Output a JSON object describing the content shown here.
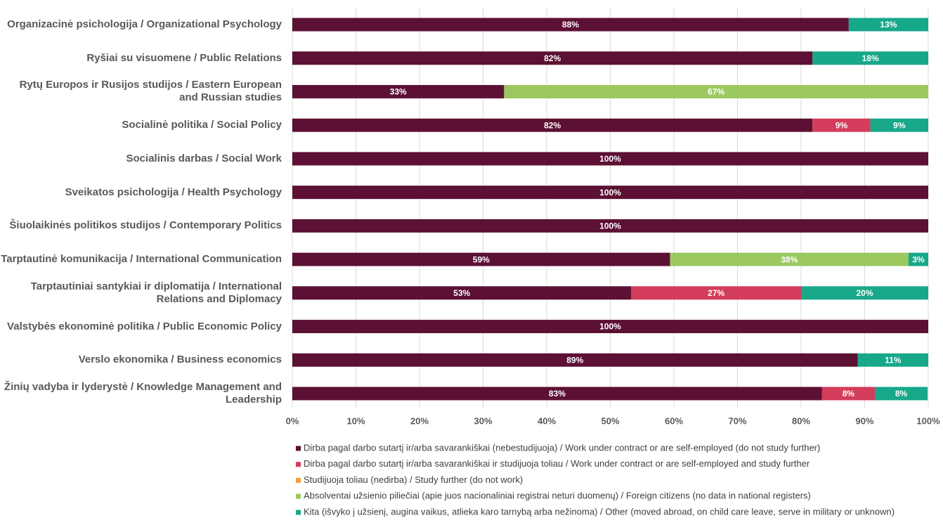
{
  "chart_data": {
    "type": "stacked-bar-horizontal",
    "categories": [
      "Organizacinė psichologija / Organizational Psychology",
      "Ryšiai su visuomene / Public Relations",
      "Rytų Europos ir Rusijos studijos / Eastern European and Russian studies",
      "Socialinė politika / Social Policy",
      "Socialinis darbas / Social Work",
      "Sveikatos psichologija / Health Psychology",
      "Šiuolaikinės politikos studijos / Contemporary Politics",
      "Tarptautinė komunikacija / International Communication",
      "Tarptautiniai santykiai ir diplomatija / International Relations and Diplomacy",
      "Valstybės ekonominė politika / Public Economic Policy",
      "Verslo ekonomika / Business economics",
      "Žinių vadyba ir lyderystė / Knowledge Management and Leadership"
    ],
    "series": [
      {
        "name": "Dirba pagal darbo sutartį ir/arba savarankiškai (nebestudijuoja) / Work under contract or are self-employed (do not study further)",
        "color": "#5c1033",
        "values": [
          87.5,
          81.8,
          33.3,
          81.8,
          100,
          100,
          100,
          59.4,
          53.3,
          100,
          88.9,
          83.3
        ],
        "value_labels": [
          "88%",
          "82%",
          "33%",
          "82%",
          "100%",
          "100%",
          "100%",
          "59%",
          "53%",
          "100%",
          "89%",
          "83%"
        ]
      },
      {
        "name": "Dirba pagal darbo sutartį ir/arba savarankiškai  ir studijuoja toliau / Work under contract or are self-employed and study further",
        "color": "#d33c5a",
        "values": [
          null,
          null,
          null,
          9.1,
          null,
          null,
          null,
          null,
          26.7,
          null,
          null,
          8.3
        ],
        "value_labels": [
          null,
          null,
          null,
          "9%",
          null,
          null,
          null,
          null,
          "27%",
          null,
          null,
          "8%"
        ]
      },
      {
        "name": "Studijuoja toliau (nedirba) / Study further (do not work)",
        "color": "#f0a03c",
        "values": [
          null,
          null,
          null,
          null,
          null,
          null,
          null,
          null,
          null,
          null,
          null,
          null
        ],
        "value_labels": [
          null,
          null,
          null,
          null,
          null,
          null,
          null,
          null,
          null,
          null,
          null,
          null
        ]
      },
      {
        "name": "Absolventai užsienio piliečiai (apie juos nacionaliniai registrai neturi duomenų) / Foreign citizens (no data in national registers)",
        "color": "#9bc95f",
        "values": [
          null,
          null,
          66.7,
          null,
          null,
          null,
          null,
          37.5,
          null,
          null,
          null,
          null
        ],
        "value_labels": [
          null,
          null,
          "67%",
          null,
          null,
          null,
          null,
          "38%",
          null,
          null,
          null,
          null
        ]
      },
      {
        "name": "Kita (išvyko į užsienį, augina vaikus, atlieka karo tarnybą arba nežinoma) / Other (moved abroad, on child care leave, serve in military or unknown)",
        "color": "#17a88a",
        "values": [
          12.5,
          18.2,
          null,
          9.1,
          null,
          null,
          null,
          3.1,
          20,
          null,
          11.1,
          8.3
        ],
        "value_labels": [
          "13%",
          "18%",
          null,
          "9%",
          null,
          null,
          null,
          "3%",
          "20%",
          null,
          "11%",
          "8%"
        ]
      }
    ],
    "xlim": [
      0,
      100
    ],
    "xticks": [
      {
        "value": 0,
        "label": "0%"
      },
      {
        "value": 10,
        "label": "10%"
      },
      {
        "value": 20,
        "label": "20%"
      },
      {
        "value": 30,
        "label": "30%"
      },
      {
        "value": 40,
        "label": "40%"
      },
      {
        "value": 50,
        "label": "50%"
      },
      {
        "value": 60,
        "label": "60%"
      },
      {
        "value": 70,
        "label": "70%"
      },
      {
        "value": 80,
        "label": "80%"
      },
      {
        "value": 90,
        "label": "90%"
      },
      {
        "value": 100,
        "label": "100%"
      }
    ],
    "grid": true,
    "legend": "bottom"
  }
}
